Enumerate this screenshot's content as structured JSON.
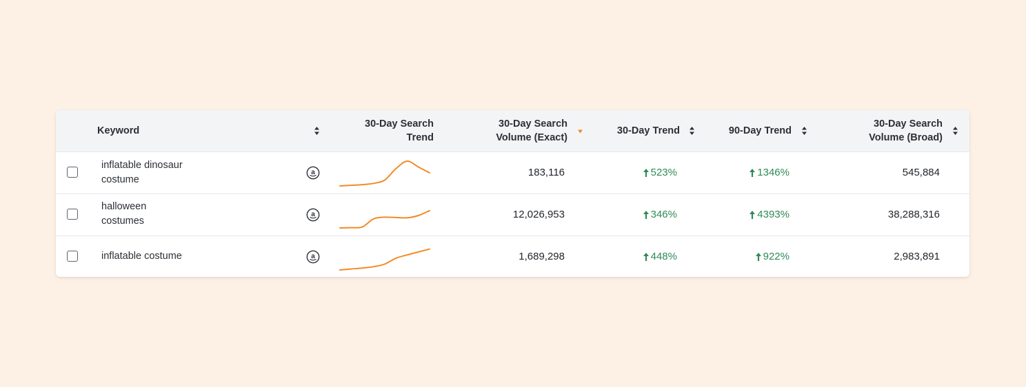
{
  "colors": {
    "background": "#fdf1e6",
    "sparkline": "#f28a25",
    "trend_up": "#2e8a57",
    "active_sort": "#f28a25"
  },
  "table": {
    "columns": {
      "keyword": "Keyword",
      "search_trend_30d": [
        "30-Day Search",
        "Trend"
      ],
      "volume_exact": [
        "30-Day Search",
        "Volume (Exact)"
      ],
      "trend_30d": "30-Day Trend",
      "trend_90d": "90-Day Trend",
      "volume_broad": [
        "30-Day Search",
        "Volume (Broad)"
      ]
    },
    "sorted_by": "volume_exact",
    "rows": [
      {
        "keyword": [
          "inflatable dinosaur",
          "costume"
        ],
        "source_icon": "amazon-icon",
        "sparkline": [
          2,
          4,
          6,
          10,
          20,
          55,
          78,
          60,
          42
        ],
        "volume_exact": "183,116",
        "trend_30d": "523%",
        "trend_90d": "1346%",
        "volume_broad": "545,884"
      },
      {
        "keyword": [
          "halloween",
          "costumes"
        ],
        "source_icon": "amazon-icon",
        "sparkline": [
          2,
          3,
          5,
          30,
          35,
          34,
          33,
          40,
          55
        ],
        "volume_exact": "12,026,953",
        "trend_30d": "346%",
        "trend_90d": "4393%",
        "volume_broad": "38,288,316"
      },
      {
        "keyword": [
          "inflatable costume"
        ],
        "source_icon": "amazon-icon",
        "sparkline": [
          2,
          5,
          8,
          12,
          20,
          38,
          48,
          57,
          66
        ],
        "volume_exact": "1,689,298",
        "trend_30d": "448%",
        "trend_90d": "922%",
        "volume_broad": "2,983,891"
      }
    ]
  }
}
